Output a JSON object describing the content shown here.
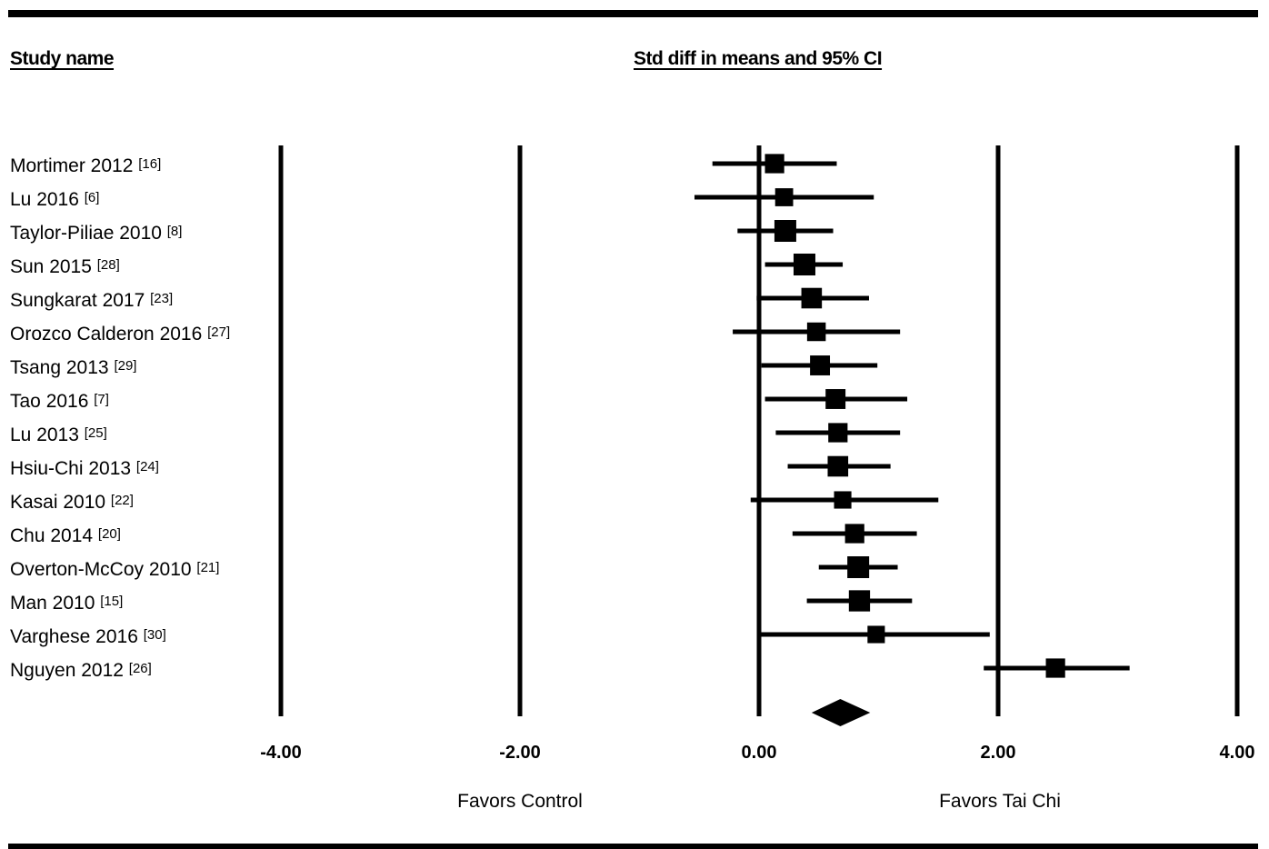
{
  "headers": {
    "study": "Study name",
    "effect": "Std diff in means and 95% CI"
  },
  "chart_data": {
    "type": "forest",
    "x_label_left": "Favors Control",
    "x_label_right": "Favors Tai Chi",
    "xlim": [
      -4,
      4
    ],
    "ticks": [
      {
        "value": -4,
        "label": "-4.00"
      },
      {
        "value": -2,
        "label": "-2.00"
      },
      {
        "value": 0,
        "label": "0.00"
      },
      {
        "value": 2,
        "label": "2.00"
      },
      {
        "value": 4,
        "label": "4.00"
      }
    ],
    "studies": [
      {
        "name": "Mortimer 2012",
        "ref": "[16]",
        "estimate": 0.13,
        "lower": -0.39,
        "upper": 0.65,
        "weight": 0.8
      },
      {
        "name": "Lu 2016",
        "ref": "[6]",
        "estimate": 0.21,
        "lower": -0.54,
        "upper": 0.96,
        "weight": 0.7
      },
      {
        "name": "Taylor-Piliae 2010",
        "ref": "[8]",
        "estimate": 0.22,
        "lower": -0.18,
        "upper": 0.62,
        "weight": 1.0
      },
      {
        "name": "Sun 2015",
        "ref": "[28]",
        "estimate": 0.38,
        "lower": 0.05,
        "upper": 0.7,
        "weight": 1.0
      },
      {
        "name": "Sungkarat 2017",
        "ref": "[23]",
        "estimate": 0.44,
        "lower": -0.02,
        "upper": 0.92,
        "weight": 0.9
      },
      {
        "name": "Orozco Calderon 2016",
        "ref": "[27]",
        "estimate": 0.48,
        "lower": -0.22,
        "upper": 1.18,
        "weight": 0.75
      },
      {
        "name": "Tsang 2013",
        "ref": "[29]",
        "estimate": 0.51,
        "lower": 0.02,
        "upper": 0.99,
        "weight": 0.85
      },
      {
        "name": "Tao 2016",
        "ref": "[7]",
        "estimate": 0.64,
        "lower": 0.05,
        "upper": 1.24,
        "weight": 0.85
      },
      {
        "name": "Lu 2013",
        "ref": "[25]",
        "estimate": 0.66,
        "lower": 0.14,
        "upper": 1.18,
        "weight": 0.8
      },
      {
        "name": "Hsiu-Chi 2013",
        "ref": "[24]",
        "estimate": 0.66,
        "lower": 0.24,
        "upper": 1.1,
        "weight": 0.9
      },
      {
        "name": "Kasai 2010",
        "ref": "[22]",
        "estimate": 0.7,
        "lower": -0.07,
        "upper": 1.5,
        "weight": 0.65
      },
      {
        "name": "Chu 2014",
        "ref": "[20]",
        "estimate": 0.8,
        "lower": 0.28,
        "upper": 1.32,
        "weight": 0.8
      },
      {
        "name": "Overton-McCoy 2010",
        "ref": "[21]",
        "estimate": 0.83,
        "lower": 0.5,
        "upper": 1.16,
        "weight": 1.0
      },
      {
        "name": "Man 2010",
        "ref": "[15]",
        "estimate": 0.84,
        "lower": 0.4,
        "upper": 1.28,
        "weight": 0.95
      },
      {
        "name": "Varghese 2016",
        "ref": "[30]",
        "estimate": 0.98,
        "lower": 0.0,
        "upper": 1.93,
        "weight": 0.65
      },
      {
        "name": "Nguyen 2012",
        "ref": "[26]",
        "estimate": 2.48,
        "lower": 1.88,
        "upper": 3.1,
        "weight": 0.8
      }
    ],
    "summary": {
      "estimate": 0.68,
      "lower": 0.44,
      "upper": 0.93
    }
  }
}
